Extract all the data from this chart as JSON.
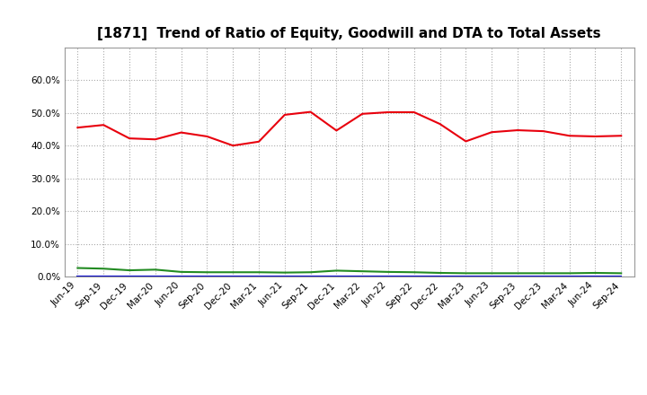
{
  "title": "[1871]  Trend of Ratio of Equity, Goodwill and DTA to Total Assets",
  "x_labels": [
    "Jun-19",
    "Sep-19",
    "Dec-19",
    "Mar-20",
    "Jun-20",
    "Sep-20",
    "Dec-20",
    "Mar-21",
    "Jun-21",
    "Sep-21",
    "Dec-21",
    "Mar-22",
    "Jun-22",
    "Sep-22",
    "Dec-22",
    "Mar-23",
    "Jun-23",
    "Sep-23",
    "Dec-23",
    "Mar-24",
    "Jun-24",
    "Sep-24"
  ],
  "equity": [
    0.455,
    0.463,
    0.422,
    0.419,
    0.44,
    0.428,
    0.4,
    0.412,
    0.494,
    0.503,
    0.446,
    0.497,
    0.502,
    0.502,
    0.466,
    0.413,
    0.441,
    0.447,
    0.444,
    0.43,
    0.428,
    0.43
  ],
  "goodwill": [
    0.0,
    0.0,
    0.0,
    0.0,
    0.0,
    0.0,
    0.0,
    0.0,
    0.0,
    0.0,
    0.0,
    0.0,
    0.0,
    0.0,
    0.0,
    0.0,
    0.0,
    0.0,
    0.0,
    0.0,
    0.0,
    0.0
  ],
  "dta": [
    0.026,
    0.024,
    0.019,
    0.021,
    0.014,
    0.013,
    0.013,
    0.013,
    0.012,
    0.013,
    0.018,
    0.016,
    0.014,
    0.013,
    0.011,
    0.01,
    0.01,
    0.01,
    0.01,
    0.01,
    0.011,
    0.01
  ],
  "equity_color": "#e8000d",
  "goodwill_color": "#0000cd",
  "dta_color": "#228b22",
  "ylim": [
    0.0,
    0.7
  ],
  "yticks": [
    0.0,
    0.1,
    0.2,
    0.3,
    0.4,
    0.5,
    0.6
  ],
  "background_color": "#ffffff",
  "plot_bg_color": "#ffffff",
  "grid_color": "#aaaaaa",
  "title_fontsize": 11,
  "tick_fontsize": 7.5,
  "legend_fontsize": 9
}
